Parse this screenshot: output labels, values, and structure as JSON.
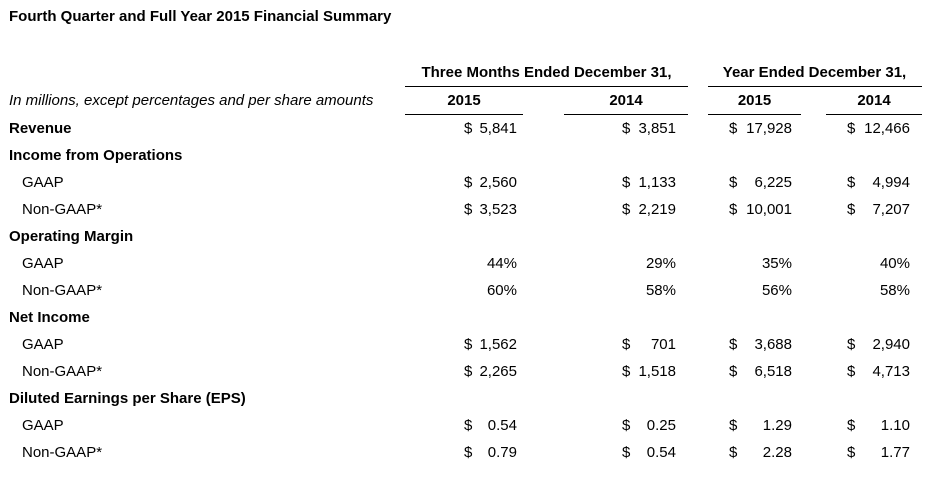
{
  "title": "Fourth Quarter and Full Year 2015 Financial Summary",
  "period_headers": {
    "three_months": "Three Months Ended December 31,",
    "year": "Year Ended December 31,"
  },
  "units_note": "In millions, except percentages and per share amounts",
  "year_headers": [
    "2015",
    "2014",
    "2015",
    "2014"
  ],
  "rows": [
    {
      "label": "Revenue",
      "bold": true,
      "cells": [
        [
          "$",
          "5,841"
        ],
        [
          "$",
          "3,851"
        ],
        [
          "$",
          "17,928"
        ],
        [
          "$",
          "12,466"
        ]
      ]
    },
    {
      "label": "Income from Operations",
      "bold": true,
      "cells": []
    },
    {
      "label": "GAAP",
      "bold": false,
      "cells": [
        [
          "$",
          "2,560"
        ],
        [
          "$",
          "1,133"
        ],
        [
          "$",
          "6,225"
        ],
        [
          "$",
          "4,994"
        ]
      ]
    },
    {
      "label": "Non-GAAP*",
      "bold": false,
      "cells": [
        [
          "$",
          "3,523"
        ],
        [
          "$",
          "2,219"
        ],
        [
          "$",
          "10,001"
        ],
        [
          "$",
          "7,207"
        ]
      ]
    },
    {
      "label": "Operating Margin",
      "bold": true,
      "cells": []
    },
    {
      "label": "GAAP",
      "bold": false,
      "cells": [
        [
          "",
          "44%"
        ],
        [
          "",
          "29%"
        ],
        [
          "",
          "35%"
        ],
        [
          "",
          "40%"
        ]
      ]
    },
    {
      "label": "Non-GAAP*",
      "bold": false,
      "cells": [
        [
          "",
          "60%"
        ],
        [
          "",
          "58%"
        ],
        [
          "",
          "56%"
        ],
        [
          "",
          "58%"
        ]
      ]
    },
    {
      "label": "Net Income",
      "bold": true,
      "cells": []
    },
    {
      "label": "GAAP",
      "bold": false,
      "cells": [
        [
          "$",
          "1,562"
        ],
        [
          "$",
          "701"
        ],
        [
          "$",
          "3,688"
        ],
        [
          "$",
          "2,940"
        ]
      ]
    },
    {
      "label": "Non-GAAP*",
      "bold": false,
      "cells": [
        [
          "$",
          "2,265"
        ],
        [
          "$",
          "1,518"
        ],
        [
          "$",
          "6,518"
        ],
        [
          "$",
          "4,713"
        ]
      ]
    },
    {
      "label": "Diluted Earnings per Share (EPS)",
      "bold": true,
      "cells": []
    },
    {
      "label": "GAAP",
      "bold": false,
      "cells": [
        [
          "$",
          "0.54"
        ],
        [
          "$",
          "0.25"
        ],
        [
          "$",
          "1.29"
        ],
        [
          "$",
          "1.10"
        ]
      ]
    },
    {
      "label": "Non-GAAP*",
      "bold": false,
      "cells": [
        [
          "$",
          "0.79"
        ],
        [
          "$",
          "0.54"
        ],
        [
          "$",
          "2.28"
        ],
        [
          "$",
          "1.77"
        ]
      ]
    }
  ]
}
